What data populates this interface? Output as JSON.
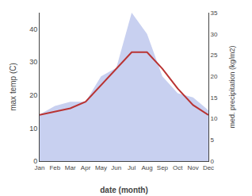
{
  "chart_data": {
    "type": "line",
    "categories": [
      "Jan",
      "Feb",
      "Mar",
      "Apr",
      "May",
      "Jun",
      "Jul",
      "Aug",
      "Sep",
      "Oct",
      "Nov",
      "Dec"
    ],
    "series": [
      {
        "type": "area",
        "axis": "y2",
        "color": "#c8d0f0",
        "values": [
          11,
          13,
          14,
          14,
          20,
          22,
          35,
          30,
          20,
          16,
          15,
          12
        ]
      },
      {
        "type": "line",
        "color": "#b93333",
        "values": [
          14,
          15,
          16,
          18,
          23,
          28,
          33,
          33,
          28,
          22,
          17,
          14
        ]
      }
    ],
    "xlabel": "date (month)",
    "ylabel": "max temp (C)",
    "y2label": "med. precipitation (kg/m2)",
    "ylim": [
      0,
      45
    ],
    "yticks": [
      0,
      10,
      20,
      30,
      40
    ],
    "y2lim": [
      0,
      35
    ],
    "y2ticks": [
      0,
      5,
      10,
      15,
      20,
      25,
      30,
      35
    ],
    "grid": false
  }
}
